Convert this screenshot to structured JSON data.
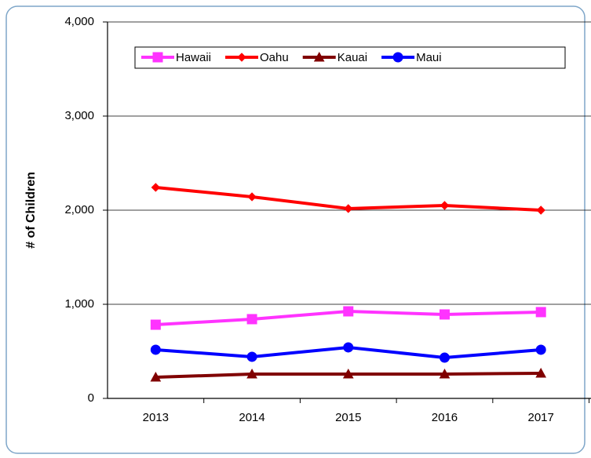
{
  "chart_data": {
    "type": "line",
    "y_label": "# of Children",
    "categories": [
      "2013",
      "2014",
      "2015",
      "2016",
      "2017"
    ],
    "series": [
      {
        "name": "Hawaii",
        "color": "#ff33ff",
        "marker": "square",
        "values": [
          783,
          842,
          925,
          892,
          917
        ]
      },
      {
        "name": "Oahu",
        "color": "#ff0000",
        "marker": "diamond",
        "values": [
          2242,
          2142,
          2017,
          2050,
          2000
        ]
      },
      {
        "name": "Kauai",
        "color": "#800000",
        "marker": "triangle",
        "values": [
          225,
          258,
          258,
          258,
          267
        ]
      },
      {
        "name": "Maui",
        "color": "#0000ff",
        "marker": "circle",
        "values": [
          517,
          442,
          542,
          433,
          517
        ]
      }
    ],
    "ylim": [
      0,
      4000
    ],
    "yticks": [
      0,
      {
        "value": 1000,
        "label": "1,000"
      },
      {
        "value": 2000,
        "label": "2,000"
      },
      {
        "value": 3000,
        "label": "3,000"
      },
      {
        "value": 4000,
        "label": "4,000"
      }
    ],
    "grid": true,
    "legend": "top"
  }
}
